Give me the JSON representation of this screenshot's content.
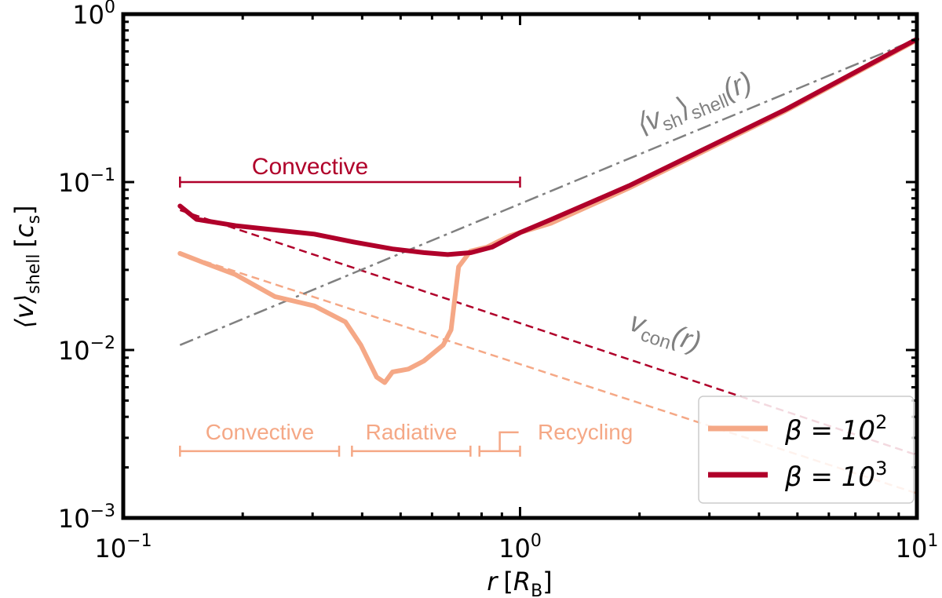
{
  "chart_data": {
    "type": "line",
    "xscale": "log",
    "yscale": "log",
    "xlim": [
      0.1,
      10
    ],
    "ylim": [
      0.001,
      1
    ],
    "grid": false,
    "legend_placement": "lower-right",
    "xlabel": {
      "main": "r",
      "bracket_open": "[",
      "sym": "R",
      "sub": "B",
      "bracket_close": "]"
    },
    "ylabel": {
      "main": "⟨v⟩",
      "sub": "shell",
      "unit_open": "[",
      "unit": "c",
      "unit_sub": "s",
      "unit_close": "]"
    },
    "x_ticks": [
      {
        "base": "10",
        "exp": "−1",
        "value": 0.1
      },
      {
        "base": "10",
        "exp": "0",
        "value": 1
      },
      {
        "base": "10",
        "exp": "1",
        "value": 10
      }
    ],
    "y_ticks": [
      {
        "base": "10",
        "exp": "−3",
        "value": 0.001
      },
      {
        "base": "10",
        "exp": "−2",
        "value": 0.01
      },
      {
        "base": "10",
        "exp": "−1",
        "value": 0.1
      },
      {
        "base": "10",
        "exp": "0",
        "value": 1
      }
    ],
    "colors": {
      "beta2": "#F5A886",
      "beta3": "#B0002A",
      "vsh": "#808080"
    },
    "series": [
      {
        "name": "β = 10^2",
        "legend_label": {
          "sym": "β = 10",
          "exp": "2"
        },
        "style": "solid",
        "color_key": "beta2",
        "x": [
          0.139,
          0.16,
          0.192,
          0.241,
          0.303,
          0.363,
          0.397,
          0.435,
          0.456,
          0.477,
          0.523,
          0.572,
          0.64,
          0.67,
          0.7,
          0.75,
          0.825,
          0.945,
          1.0,
          1.2,
          1.88,
          4.66,
          10
        ],
        "y": [
          0.0376,
          0.033,
          0.0281,
          0.0208,
          0.0183,
          0.0147,
          0.0107,
          0.0069,
          0.0064,
          0.0074,
          0.0077,
          0.0086,
          0.0107,
          0.0132,
          0.0313,
          0.0388,
          0.041,
          0.048,
          0.05,
          0.057,
          0.092,
          0.265,
          0.7
        ]
      },
      {
        "name": "β = 10^3",
        "legend_label": {
          "sym": "β = 10",
          "exp": "3"
        },
        "style": "solid",
        "color_key": "beta3",
        "x": [
          0.139,
          0.153,
          0.192,
          0.303,
          0.38,
          0.477,
          0.572,
          0.657,
          0.753,
          0.85,
          1.0,
          1.2,
          1.88,
          4.66,
          10
        ],
        "y": [
          0.072,
          0.06,
          0.055,
          0.049,
          0.044,
          0.04,
          0.038,
          0.037,
          0.038,
          0.041,
          0.05,
          0.06,
          0.095,
          0.27,
          0.71
        ]
      },
      {
        "style": "dashed",
        "color_key": "beta3",
        "x": [
          0.139,
          10
        ],
        "y": [
          0.068,
          0.00237
        ]
      },
      {
        "style": "dashed",
        "color_key": "beta2",
        "x": [
          0.139,
          10
        ],
        "y": [
          0.0376,
          0.0014
        ]
      },
      {
        "style": "dashdot",
        "color_key": "vsh",
        "x": [
          0.139,
          10
        ],
        "y": [
          0.0107,
          0.71
        ]
      }
    ],
    "annotations": {
      "vsh_label": {
        "open": "⟨v",
        "sub": "sh",
        "close": "⟩",
        "sub2": "shell",
        "arg": "(r)"
      },
      "vcon_label": {
        "main": "v",
        "sub": "con",
        "arg": "(r)"
      },
      "regions_beta3": [
        {
          "label": "Convective",
          "x_range": [
            0.139,
            1.0
          ],
          "y": 0.1
        }
      ],
      "regions_beta2": [
        {
          "label": "Convective",
          "x_range": [
            0.139,
            0.35
          ],
          "y": 0.0025
        },
        {
          "label": "Radiative",
          "x_range": [
            0.377,
            0.75
          ],
          "y": 0.0025
        },
        {
          "label": "Recycling",
          "x_range": [
            0.79,
            1.0
          ],
          "y": 0.0025
        }
      ]
    }
  }
}
